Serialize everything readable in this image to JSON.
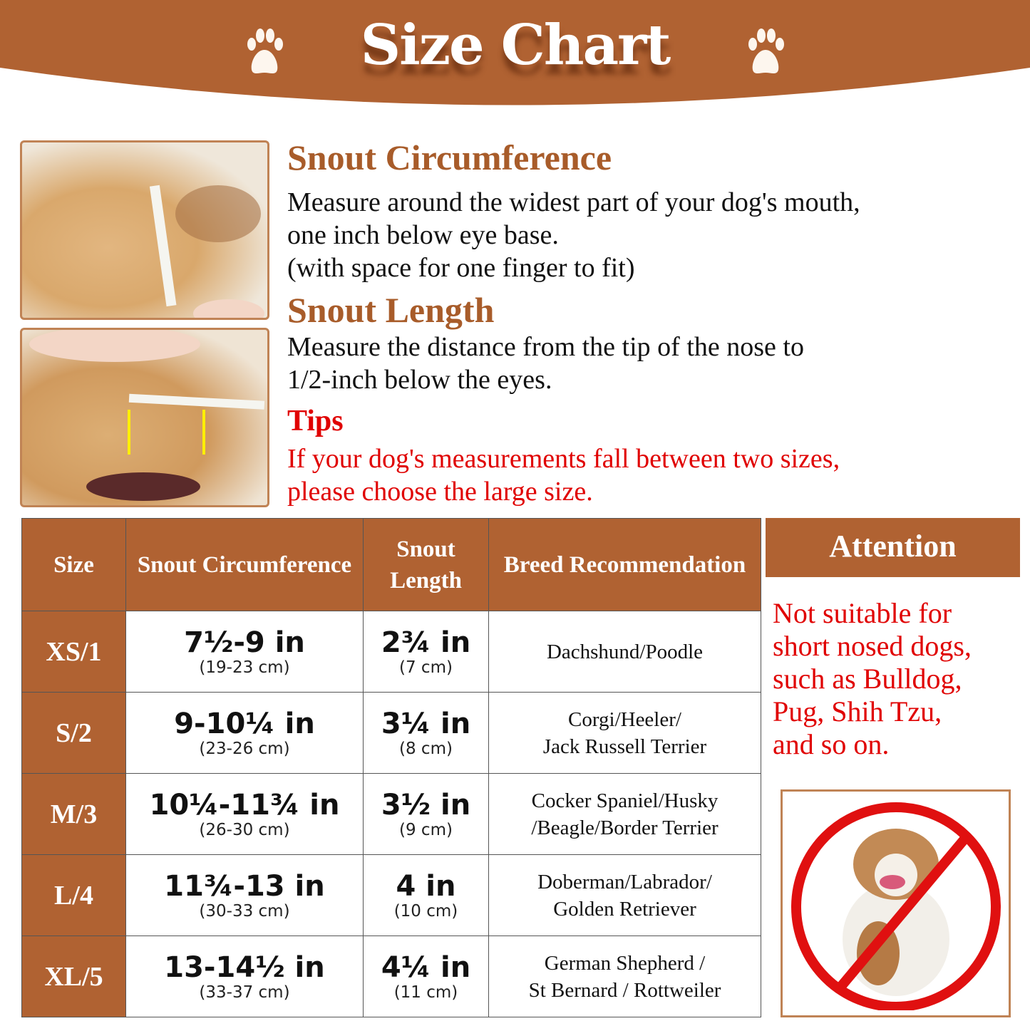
{
  "header": {
    "title": "Size Chart",
    "icon": "paw-icon",
    "color": "#b06232"
  },
  "instructions": {
    "circumference_title": "Snout Circumference",
    "circumference_lines": [
      "Measure around the widest part of your dog's mouth,",
      "one inch below eye base.",
      "(with space for one finger to fit)"
    ],
    "length_title": "Snout Length",
    "length_lines": [
      "Measure the distance from the tip of the nose to",
      "1/2-inch below the eyes."
    ],
    "tips_title": "Tips",
    "tips_lines": [
      "If your dog's measurements fall between two sizes,",
      "please choose the large size."
    ]
  },
  "table": {
    "headers": [
      "Size",
      "Snout Circumference",
      "Snout Length",
      "Breed Recommendation"
    ],
    "rows": [
      {
        "size": "XS/1",
        "circ": "7½-9 in",
        "circ_cm": "(19-23 cm)",
        "len": "2¾ in",
        "len_cm": "(7 cm)",
        "breed": [
          "Dachshund/Poodle"
        ]
      },
      {
        "size": "S/2",
        "circ": "9-10¼ in",
        "circ_cm": "(23-26 cm)",
        "len": "3¼ in",
        "len_cm": "(8 cm)",
        "breed": [
          "Corgi/Heeler/",
          "Jack Russell Terrier"
        ]
      },
      {
        "size": "M/3",
        "circ": "10¼-11¾ in",
        "circ_cm": "(26-30 cm)",
        "len": "3½ in",
        "len_cm": "(9 cm)",
        "breed": [
          "Cocker Spaniel/Husky",
          "/Beagle/Border Terrier"
        ]
      },
      {
        "size": "L/4",
        "circ": "11¾-13 in",
        "circ_cm": "(30-33 cm)",
        "len": "4 in",
        "len_cm": "(10 cm)",
        "breed": [
          "Doberman/Labrador/",
          "Golden Retriever"
        ]
      },
      {
        "size": "XL/5",
        "circ": "13-14½ in",
        "circ_cm": "(33-37 cm)",
        "len": "4¼ in",
        "len_cm": "(11 cm)",
        "breed": [
          "German Shepherd /",
          "St Bernard / Rottweiler"
        ]
      }
    ]
  },
  "attention": {
    "title": "Attention",
    "lines": [
      "Not suitable for",
      "short nosed dogs,",
      "such as Bulldog,",
      "Pug, Shih Tzu,",
      "and so on."
    ],
    "image": "no-bulldog-icon"
  }
}
